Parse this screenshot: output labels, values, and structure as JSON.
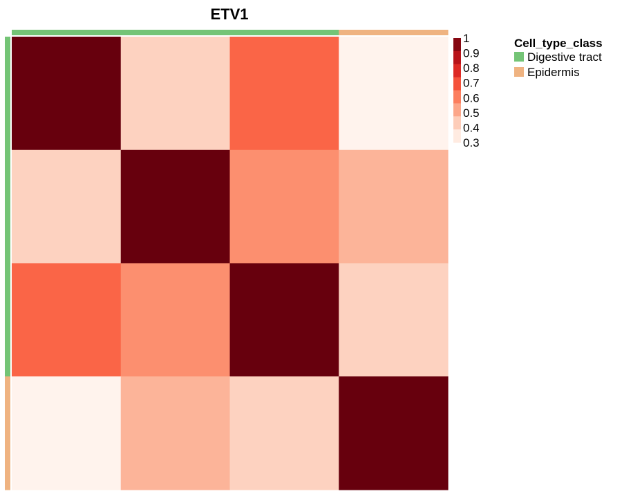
{
  "chart_data": {
    "type": "heatmap",
    "title": "ETV1",
    "annotation": {
      "title": "Cell_type_class",
      "classes": [
        {
          "name": "Digestive tract",
          "color": "#74C476"
        },
        {
          "name": "Epidermis",
          "color": "#EFB381"
        }
      ],
      "row_classes": [
        "Digestive tract",
        "Digestive tract",
        "Digestive tract",
        "Epidermis"
      ],
      "col_classes": [
        "Digestive tract",
        "Digestive tract",
        "Digestive tract",
        "Epidermis"
      ]
    },
    "matrix": [
      [
        1.0,
        0.42,
        0.66,
        0.31
      ],
      [
        0.42,
        1.0,
        0.57,
        0.49
      ],
      [
        0.66,
        0.57,
        1.0,
        0.42
      ],
      [
        0.31,
        0.49,
        0.42,
        1.0
      ]
    ],
    "colorbar": {
      "range": [
        0.3,
        1
      ],
      "ticks": [
        "1",
        "0.9",
        "0.8",
        "0.7",
        "0.6",
        "0.5",
        "0.4",
        "0.3"
      ],
      "colors": [
        "#FFF5F0",
        "#FEE0D2",
        "#FCBBA1",
        "#FC9272",
        "#FB6A4A",
        "#EF3B2C",
        "#CB181D",
        "#A50F15",
        "#67000D"
      ]
    }
  }
}
